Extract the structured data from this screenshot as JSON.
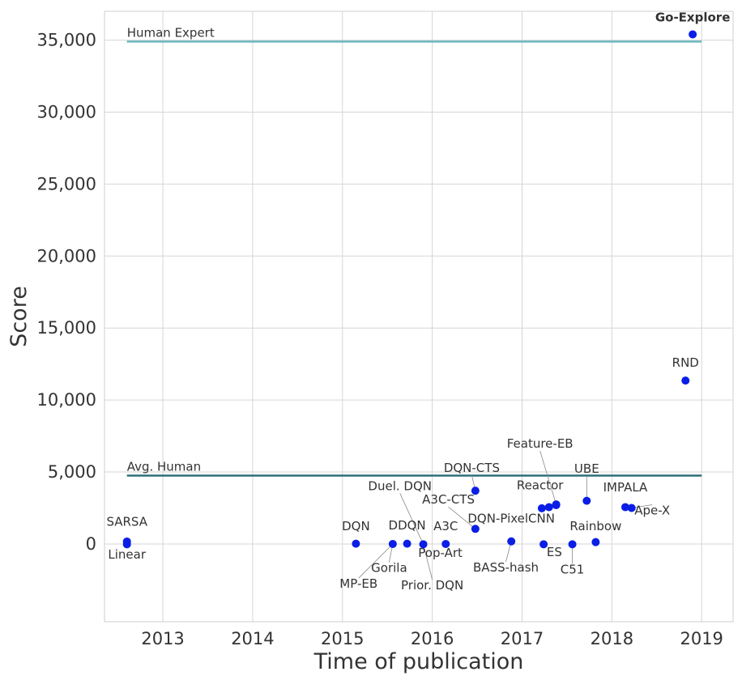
{
  "chart_data": {
    "type": "scatter",
    "title": "",
    "xlabel": "Time of publication",
    "ylabel": "Score",
    "xlim": [
      2012.35,
      2019.35
    ],
    "ylim": [
      -5400,
      37000
    ],
    "grid": true,
    "legend": "none",
    "x_ticks": [
      {
        "value": 2013,
        "label": "2013"
      },
      {
        "value": 2014,
        "label": "2014"
      },
      {
        "value": 2015,
        "label": "2015"
      },
      {
        "value": 2016,
        "label": "2016"
      },
      {
        "value": 2017,
        "label": "2017"
      },
      {
        "value": 2018,
        "label": "2018"
      },
      {
        "value": 2019,
        "label": "2019"
      }
    ],
    "y_ticks": [
      {
        "value": 0,
        "label": "0"
      },
      {
        "value": 5000,
        "label": "5,000"
      },
      {
        "value": 10000,
        "label": "10,000"
      },
      {
        "value": 15000,
        "label": "15,000"
      },
      {
        "value": 20000,
        "label": "20,000"
      },
      {
        "value": 25000,
        "label": "25,000"
      },
      {
        "value": 30000,
        "label": "30,000"
      },
      {
        "value": 35000,
        "label": "35,000"
      }
    ],
    "reference_lines": [
      {
        "name": "Human Expert",
        "y": 34900,
        "x_start": 2012.6,
        "x_end": 2019.0,
        "color": "#6bb8c0"
      },
      {
        "name": "Avg. Human",
        "y": 4750,
        "x_start": 2012.6,
        "x_end": 2019.0,
        "color": "#2f6f7a"
      }
    ],
    "point_color": "#0a1ee6",
    "points": [
      {
        "name": "SARSA",
        "x": 2012.6,
        "y": 170,
        "label_dx": 2012.6,
        "label_dy": 1250
      },
      {
        "name": "Linear",
        "x": 2012.6,
        "y": -20,
        "label_dx": 2012.6,
        "label_dy": -1000
      },
      {
        "name": "DQN",
        "x": 2015.15,
        "y": 20,
        "label_dx": 2015.15,
        "label_dy": 950
      },
      {
        "name": "Gorila",
        "x": 2015.56,
        "y": 0,
        "label_dx": 2015.52,
        "label_dy": -1950,
        "leader": true
      },
      {
        "name": "MP-EB",
        "x": 2015.56,
        "y": 0,
        "label_dx": 2015.18,
        "label_dy": -3050,
        "leader": true
      },
      {
        "name": "DDQN",
        "x": 2015.72,
        "y": 20,
        "label_dx": 2015.72,
        "label_dy": 1000
      },
      {
        "name": "Duel. DQN",
        "x": 2015.9,
        "y": -20,
        "label_dx": 2015.64,
        "label_dy": 3750,
        "leader": true
      },
      {
        "name": "Prior. DQN",
        "x": 2015.9,
        "y": -20,
        "label_dx": 2016.0,
        "label_dy": -3150,
        "leader": true
      },
      {
        "name": "Pop-Art",
        "x": 2015.9,
        "y": -20,
        "label_dx": 2016.09,
        "label_dy": -900
      },
      {
        "name": "A3C",
        "x": 2016.15,
        "y": 0,
        "label_dx": 2016.15,
        "label_dy": 950
      },
      {
        "name": "A3C-CTS",
        "x": 2016.48,
        "y": 1050,
        "label_dx": 2016.18,
        "label_dy": 2800,
        "leader": true
      },
      {
        "name": "DQN-CTS",
        "x": 2016.48,
        "y": 3700,
        "label_dx": 2016.44,
        "label_dy": 5000,
        "leader": true
      },
      {
        "name": "DQN-PixelCNN",
        "x": 2016.88,
        "y": 180,
        "label_dx": 2016.88,
        "label_dy": 1500
      },
      {
        "name": "BASS-hash",
        "x": 2016.88,
        "y": 180,
        "label_dx": 2016.82,
        "label_dy": -1900,
        "leader": true
      },
      {
        "name": "ES",
        "x": 2017.24,
        "y": -20,
        "label_dx": 2017.36,
        "label_dy": -850
      },
      {
        "name": "Reactor",
        "x": 2017.3,
        "y": 2560,
        "label_dx": 2017.2,
        "label_dy": 3800
      },
      {
        "name": "Feature-EB",
        "x": 2017.38,
        "y": 2750,
        "label_dx": 2017.2,
        "label_dy": 6700,
        "leader": true
      },
      {
        "name": "UBE",
        "x": 2017.72,
        "y": 3000,
        "label_dx": 2017.72,
        "label_dy": 4950,
        "leader": true
      },
      {
        "name": "C51",
        "x": 2017.56,
        "y": -20,
        "label_dx": 2017.56,
        "label_dy": -2050,
        "leader": true
      },
      {
        "name": "Rainbow",
        "x": 2017.82,
        "y": 130,
        "label_dx": 2017.82,
        "label_dy": 950
      },
      {
        "name": "IMPALA",
        "x": 2018.15,
        "y": 2560,
        "label_dx": 2018.15,
        "label_dy": 3650
      },
      {
        "name": "Ape-X",
        "x": 2018.22,
        "y": 2500,
        "label_dx": 2018.45,
        "label_dy": 2050,
        "leader": true
      },
      {
        "name": "RND",
        "x": 2018.82,
        "y": 11350,
        "label_dx": 2018.82,
        "label_dy": 12300
      },
      {
        "name": "Go-Explore",
        "x": 2018.9,
        "y": 35400,
        "label_dx": 2018.9,
        "label_dy": 36300,
        "bold": true
      }
    ],
    "extra_points": [
      {
        "x": 2017.22,
        "y": 2480
      },
      {
        "x": 2017.38,
        "y": 2700
      }
    ]
  }
}
